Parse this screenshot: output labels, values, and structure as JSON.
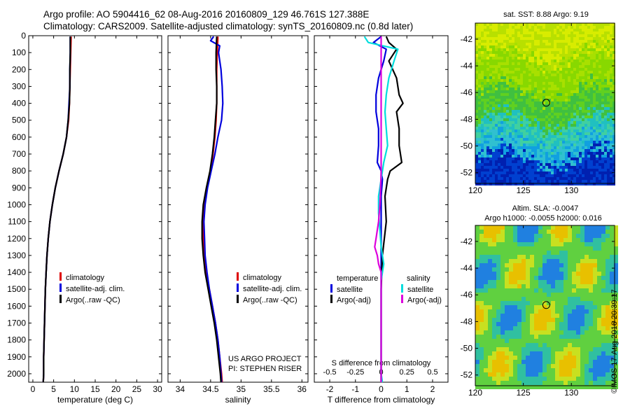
{
  "header": {
    "line1": "Argo profile: AO 5904416_62 08-Aug-2016 20160809_129 46.761S 127.388E",
    "line2": "Climatology: CARS2009. Satellite-adjusted climatology: synTS_20160809.nc (0.8d later)"
  },
  "colors": {
    "climatology": "#dd0000",
    "satellite": "#0000dd",
    "argo": "#000000",
    "cyan": "#00dddd",
    "magenta": "#dd00dd"
  },
  "chart_data": [
    {
      "type": "line",
      "xlabel": "temperature (deg C)",
      "ylabel": "",
      "xlim": [
        -1,
        31
      ],
      "ylim": [
        2100,
        0
      ],
      "y_inverted": true,
      "xticks": [
        0,
        5,
        10,
        15,
        20,
        25,
        30
      ],
      "yticks": [
        0,
        100,
        200,
        300,
        400,
        500,
        600,
        700,
        800,
        900,
        1000,
        1100,
        1200,
        1300,
        1400,
        1500,
        1600,
        1700,
        1800,
        1900,
        2000
      ],
      "legend": [
        "climatology",
        "satellite-adj. clim.",
        "Argo(..raw -QC)"
      ],
      "series": [
        {
          "name": "climatology",
          "color": "#dd0000",
          "depth": [
            5,
            100,
            200,
            300,
            400,
            500,
            600,
            700,
            800,
            900,
            1000,
            1100,
            1200,
            1300,
            1400,
            1500,
            1600,
            1700,
            1800,
            1900,
            2000,
            2050
          ],
          "values": [
            9.2,
            9.1,
            9.0,
            8.9,
            8.8,
            8.6,
            8.1,
            7.3,
            6.3,
            5.4,
            4.7,
            4.1,
            3.7,
            3.4,
            3.2,
            3.0,
            2.9,
            2.8,
            2.7,
            2.6,
            2.6,
            2.5
          ]
        },
        {
          "name": "satellite-adj. clim.",
          "color": "#0000dd",
          "depth": [
            5,
            100,
            200,
            300,
            400,
            500,
            600,
            700,
            800,
            900,
            1000,
            1100,
            1200,
            1300,
            1400,
            1500,
            1600,
            1700,
            1800,
            1900,
            2000,
            2050
          ],
          "values": [
            9.0,
            9.0,
            8.9,
            8.9,
            8.7,
            8.5,
            8.1,
            7.3,
            6.3,
            5.4,
            4.7,
            4.1,
            3.7,
            3.4,
            3.2,
            3.0,
            2.9,
            2.8,
            2.7,
            2.6,
            2.6,
            2.5
          ]
        },
        {
          "name": "Argo(..raw -QC)",
          "color": "#000000",
          "depth": [
            5,
            100,
            200,
            300,
            400,
            500,
            600,
            700,
            800,
            900,
            1000,
            1100,
            1200,
            1300,
            1400,
            1500,
            1600,
            1700,
            1800,
            1900,
            2000,
            2050
          ],
          "values": [
            9.0,
            9.0,
            8.9,
            8.9,
            8.8,
            8.5,
            8.1,
            7.3,
            6.3,
            5.4,
            4.7,
            4.1,
            3.7,
            3.4,
            3.2,
            3.0,
            2.9,
            2.8,
            2.7,
            2.6,
            2.6,
            2.5
          ]
        }
      ]
    },
    {
      "type": "line",
      "xlabel": "salinity",
      "xlim": [
        33.8,
        36.1
      ],
      "ylim": [
        2100,
        0
      ],
      "y_inverted": true,
      "xticks": [
        34,
        34.5,
        35,
        35.5,
        36
      ],
      "legend": [
        "climatology",
        "satellite-adj. clim.",
        "Argo(..raw -QC)"
      ],
      "annotations": [
        "US ARGO PROJECT",
        "PI: STEPHEN RISER"
      ],
      "series": [
        {
          "name": "climatology",
          "color": "#dd0000",
          "depth": [
            5,
            100,
            200,
            300,
            400,
            500,
            600,
            700,
            800,
            900,
            1000,
            1100,
            1200,
            1300,
            1400,
            1500,
            1600,
            1700,
            1800,
            1900,
            2000,
            2050
          ],
          "values": [
            34.62,
            34.61,
            34.6,
            34.6,
            34.6,
            34.59,
            34.57,
            34.54,
            34.5,
            34.44,
            34.4,
            34.38,
            34.38,
            34.4,
            34.43,
            34.48,
            34.53,
            34.58,
            34.62,
            34.65,
            34.68,
            34.69
          ]
        },
        {
          "name": "satellite-adj. clim.",
          "color": "#0000dd",
          "depth": [
            5,
            30,
            60,
            100,
            200,
            300,
            400,
            500,
            600,
            700,
            800,
            900,
            1000,
            1100,
            1200,
            1300,
            1400,
            1500,
            1600,
            1700,
            1800,
            1900,
            2000,
            2050
          ],
          "values": [
            34.55,
            34.5,
            34.65,
            34.63,
            34.67,
            34.69,
            34.7,
            34.68,
            34.62,
            34.57,
            34.51,
            34.45,
            34.41,
            34.39,
            34.4,
            34.41,
            34.44,
            34.48,
            34.53,
            34.58,
            34.62,
            34.65,
            34.67,
            34.68
          ]
        },
        {
          "name": "Argo(..raw -QC)",
          "color": "#000000",
          "depth": [
            5,
            100,
            200,
            300,
            400,
            500,
            600,
            700,
            800,
            900,
            1000,
            1100,
            1200,
            1300,
            1400,
            1500,
            1600,
            1700,
            1800,
            1900,
            2000,
            2050
          ],
          "values": [
            34.6,
            34.59,
            34.59,
            34.6,
            34.6,
            34.58,
            34.56,
            34.53,
            34.49,
            34.43,
            34.38,
            34.36,
            34.36,
            34.38,
            34.41,
            34.46,
            34.51,
            34.56,
            34.6,
            34.63,
            34.66,
            34.67
          ]
        }
      ]
    },
    {
      "type": "line",
      "xlabel": "T difference from climatology",
      "xlabel2": "S difference from climatology",
      "xlim": [
        -2.6,
        2.6
      ],
      "ylim": [
        2100,
        0
      ],
      "y_inverted": true,
      "xticks": [
        -2,
        -1,
        0,
        1,
        2
      ],
      "xticks_top_labels": [
        "-0.5",
        "-0.25",
        "0",
        "0.25",
        "0.5"
      ],
      "legend_headers": [
        "temperature",
        "salinity"
      ],
      "legend": [
        "satellite",
        "Argo(-adj)",
        "satellite",
        "Argo(-adj)"
      ],
      "series": [
        {
          "name": "temperature satellite",
          "color": "#0000dd",
          "depth": [
            5,
            40,
            80,
            150,
            250,
            350,
            450,
            550,
            650,
            750,
            800,
            850,
            950,
            1100,
            1300,
            1500,
            1700,
            1900,
            2050
          ],
          "values": [
            0.0,
            -0.3,
            0.2,
            0.1,
            -0.1,
            -0.2,
            -0.2,
            -0.1,
            -0.1,
            -0.15,
            0.0,
            0.05,
            0.0,
            0.0,
            0.0,
            0.0,
            0.0,
            0.0,
            0.0
          ]
        },
        {
          "name": "temperature Argo(-adj)",
          "color": "#000000",
          "depth": [
            5,
            40,
            80,
            150,
            250,
            350,
            400,
            450,
            550,
            650,
            750,
            800,
            850,
            950,
            1100,
            1300,
            1500,
            1700,
            1900,
            2050
          ],
          "values": [
            0.2,
            0.3,
            0.6,
            0.3,
            0.6,
            0.7,
            0.85,
            0.6,
            0.7,
            0.7,
            0.8,
            0.35,
            0.25,
            0.15,
            0.2,
            0.05,
            0.0,
            0.0,
            0.0,
            0.0
          ]
        },
        {
          "name": "salinity satellite",
          "color": "#00dddd",
          "depth": [
            5,
            40,
            80,
            150,
            250,
            350,
            450,
            550,
            650,
            750,
            850,
            950,
            1050,
            1150,
            1250,
            1350,
            1450,
            1600,
            1800,
            2000,
            2050
          ],
          "values": [
            -0.65,
            -0.5,
            0.65,
            0.5,
            0.3,
            0.2,
            0.15,
            0.2,
            0.25,
            0.1,
            0.0,
            -0.1,
            -0.1,
            -0.05,
            0.0,
            0.1,
            0.0,
            0.0,
            0.0,
            0.0,
            0.05
          ]
        },
        {
          "name": "salinity Argo(-adj)",
          "color": "#dd00dd",
          "depth": [
            5,
            100,
            200,
            300,
            400,
            500,
            600,
            700,
            800,
            900,
            1000,
            1100,
            1200,
            1250,
            1300,
            1350,
            1400,
            1500,
            1600,
            1800,
            2000,
            2050
          ],
          "values": [
            0.0,
            0.0,
            0.0,
            0.0,
            0.0,
            0.0,
            0.0,
            0.0,
            0.0,
            -0.02,
            -0.05,
            -0.1,
            -0.2,
            -0.25,
            -0.15,
            -0.1,
            0.0,
            0.0,
            0.0,
            0.0,
            0.0,
            0.0
          ]
        }
      ]
    },
    {
      "type": "heatmap",
      "title": "sat. SST: 8.88 Argo: 9.19",
      "xticks": [
        120,
        125,
        130
      ],
      "yticks": [
        -42,
        -44,
        -46,
        -48,
        -50,
        -52
      ],
      "xlim": [
        120,
        134.5
      ],
      "ylim": [
        -52.8,
        -40.8
      ],
      "marker": {
        "lon": 127.388,
        "lat": -46.761
      }
    },
    {
      "type": "heatmap",
      "title": "Altim. SLA: -0.0047",
      "subtitle": "Argo h1000: -0.0055 h2000: 0.016",
      "xticks": [
        120,
        125,
        130
      ],
      "yticks": [
        -42,
        -44,
        -46,
        -48,
        -50,
        -52
      ],
      "xlim": [
        120,
        134.5
      ],
      "ylim": [
        -52.8,
        -40.8
      ],
      "marker": {
        "lon": 127.388,
        "lat": -46.761
      }
    }
  ],
  "imos_stamp": "©IMOS 17-Aug-2016 20:39:17"
}
